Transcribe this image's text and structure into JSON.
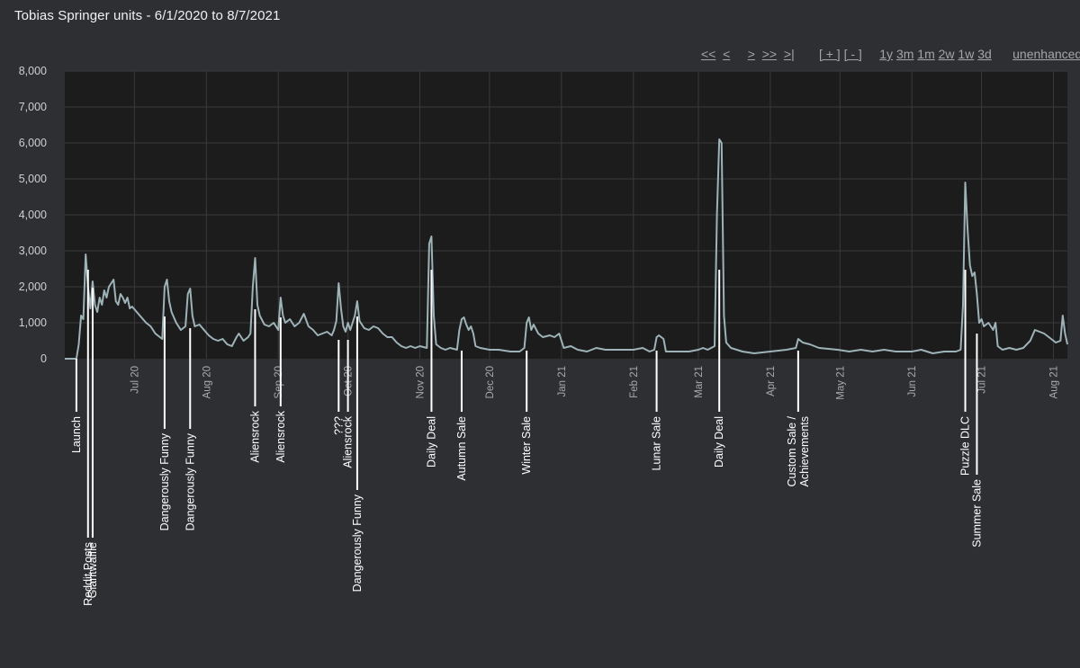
{
  "page": {
    "title": "Tobias Springer units - 6/1/2020 to 8/7/2021"
  },
  "nav": {
    "first": "<<",
    "prev": "<",
    "next": ">",
    "next_big": ">>",
    "last": ">|",
    "zoom_in": "[ + ]",
    "zoom_out": "[ - ]",
    "range_1y": "1y",
    "range_3m": "3m",
    "range_1m": "1m",
    "range_2w": "2w",
    "range_1w": "1w",
    "range_3d": "3d",
    "unenhanced": "unenhanced"
  },
  "colors": {
    "background": "#2e2f33",
    "plot_background": "#1c1c1c",
    "line": "#9db3b8",
    "grid": "#3a3a3c",
    "annotation": "#ffffff"
  },
  "chart_data": {
    "type": "line",
    "title": "Tobias Springer units - 6/1/2020 to 8/7/2021",
    "xlabel": "",
    "ylabel": "",
    "x_range": [
      "2020-06-01",
      "2021-08-07"
    ],
    "ylim": [
      0,
      8000
    ],
    "y_ticks": [
      0,
      1000,
      2000,
      3000,
      4000,
      5000,
      6000,
      7000,
      8000
    ],
    "y_tick_labels": [
      "0",
      "1,000",
      "2,000",
      "3,000",
      "4,000",
      "5,000",
      "6,000",
      "7,000",
      "8,000"
    ],
    "x_ticks": [
      {
        "date": "2020-07-01",
        "label": "Jul 20"
      },
      {
        "date": "2020-08-01",
        "label": "Aug 20"
      },
      {
        "date": "2020-09-01",
        "label": "Sep 20"
      },
      {
        "date": "2020-10-01",
        "label": "Oct 20"
      },
      {
        "date": "2020-11-01",
        "label": "Nov 20"
      },
      {
        "date": "2020-12-01",
        "label": "Dec 20"
      },
      {
        "date": "2021-01-01",
        "label": "Jan 21"
      },
      {
        "date": "2021-02-01",
        "label": "Feb 21"
      },
      {
        "date": "2021-03-01",
        "label": "Mar 21"
      },
      {
        "date": "2021-04-01",
        "label": "Apr 21"
      },
      {
        "date": "2021-05-01",
        "label": "May 21"
      },
      {
        "date": "2021-06-01",
        "label": "Jun 21"
      },
      {
        "date": "2021-07-01",
        "label": "Jul 21"
      },
      {
        "date": "2021-08-01",
        "label": "Aug 21"
      }
    ],
    "grid": true,
    "series": [
      {
        "values": [
          [
            "2020-06-01",
            0
          ],
          [
            "2020-06-06",
            0
          ],
          [
            "2020-06-07",
            400
          ],
          [
            "2020-06-08",
            1200
          ],
          [
            "2020-06-09",
            1100
          ],
          [
            "2020-06-10",
            2900
          ],
          [
            "2020-06-11",
            2000
          ],
          [
            "2020-06-12",
            1400
          ],
          [
            "2020-06-13",
            2150
          ],
          [
            "2020-06-14",
            1500
          ],
          [
            "2020-06-15",
            1300
          ],
          [
            "2020-06-16",
            1700
          ],
          [
            "2020-06-17",
            1500
          ],
          [
            "2020-06-18",
            1900
          ],
          [
            "2020-06-19",
            1700
          ],
          [
            "2020-06-20",
            2000
          ],
          [
            "2020-06-21",
            2100
          ],
          [
            "2020-06-22",
            2200
          ],
          [
            "2020-06-23",
            1600
          ],
          [
            "2020-06-24",
            1500
          ],
          [
            "2020-06-25",
            1800
          ],
          [
            "2020-06-26",
            1700
          ],
          [
            "2020-06-27",
            1550
          ],
          [
            "2020-06-28",
            1700
          ],
          [
            "2020-06-29",
            1400
          ],
          [
            "2020-06-30",
            1450
          ],
          [
            "2020-07-02",
            1300
          ],
          [
            "2020-07-04",
            1150
          ],
          [
            "2020-07-06",
            1000
          ],
          [
            "2020-07-08",
            900
          ],
          [
            "2020-07-10",
            700
          ],
          [
            "2020-07-12",
            600
          ],
          [
            "2020-07-13",
            550
          ],
          [
            "2020-07-14",
            2000
          ],
          [
            "2020-07-15",
            2200
          ],
          [
            "2020-07-16",
            1600
          ],
          [
            "2020-07-17",
            1300
          ],
          [
            "2020-07-19",
            1000
          ],
          [
            "2020-07-21",
            800
          ],
          [
            "2020-07-23",
            900
          ],
          [
            "2020-07-24",
            1800
          ],
          [
            "2020-07-25",
            1950
          ],
          [
            "2020-07-26",
            1200
          ],
          [
            "2020-07-27",
            900
          ],
          [
            "2020-07-29",
            950
          ],
          [
            "2020-07-31",
            800
          ],
          [
            "2020-08-02",
            650
          ],
          [
            "2020-08-04",
            550
          ],
          [
            "2020-08-06",
            500
          ],
          [
            "2020-08-08",
            550
          ],
          [
            "2020-08-10",
            400
          ],
          [
            "2020-08-12",
            350
          ],
          [
            "2020-08-14",
            600
          ],
          [
            "2020-08-15",
            700
          ],
          [
            "2020-08-17",
            500
          ],
          [
            "2020-08-19",
            600
          ],
          [
            "2020-08-20",
            700
          ],
          [
            "2020-08-21",
            2000
          ],
          [
            "2020-08-22",
            2800
          ],
          [
            "2020-08-23",
            1500
          ],
          [
            "2020-08-24",
            1200
          ],
          [
            "2020-08-26",
            950
          ],
          [
            "2020-08-28",
            900
          ],
          [
            "2020-08-30",
            1000
          ],
          [
            "2020-09-01",
            800
          ],
          [
            "2020-09-02",
            1700
          ],
          [
            "2020-09-03",
            1200
          ],
          [
            "2020-09-04",
            1000
          ],
          [
            "2020-09-06",
            1100
          ],
          [
            "2020-09-08",
            900
          ],
          [
            "2020-09-10",
            1000
          ],
          [
            "2020-09-12",
            1250
          ],
          [
            "2020-09-14",
            900
          ],
          [
            "2020-09-16",
            800
          ],
          [
            "2020-09-18",
            650
          ],
          [
            "2020-09-20",
            700
          ],
          [
            "2020-09-22",
            750
          ],
          [
            "2020-09-24",
            650
          ],
          [
            "2020-09-25",
            800
          ],
          [
            "2020-09-26",
            1050
          ],
          [
            "2020-09-27",
            2100
          ],
          [
            "2020-09-28",
            1400
          ],
          [
            "2020-09-29",
            900
          ],
          [
            "2020-09-30",
            750
          ],
          [
            "2020-10-01",
            1000
          ],
          [
            "2020-10-02",
            800
          ],
          [
            "2020-10-04",
            1200
          ],
          [
            "2020-10-05",
            1600
          ],
          [
            "2020-10-06",
            1050
          ],
          [
            "2020-10-08",
            850
          ],
          [
            "2020-10-10",
            800
          ],
          [
            "2020-10-12",
            900
          ],
          [
            "2020-10-14",
            850
          ],
          [
            "2020-10-16",
            700
          ],
          [
            "2020-10-18",
            600
          ],
          [
            "2020-10-20",
            600
          ],
          [
            "2020-10-22",
            450
          ],
          [
            "2020-10-24",
            350
          ],
          [
            "2020-10-26",
            300
          ],
          [
            "2020-10-28",
            350
          ],
          [
            "2020-10-30",
            300
          ],
          [
            "2020-11-01",
            350
          ],
          [
            "2020-11-04",
            300
          ],
          [
            "2020-11-05",
            3200
          ],
          [
            "2020-11-06",
            3400
          ],
          [
            "2020-11-07",
            1200
          ],
          [
            "2020-11-08",
            400
          ],
          [
            "2020-11-10",
            300
          ],
          [
            "2020-11-12",
            250
          ],
          [
            "2020-11-14",
            300
          ],
          [
            "2020-11-17",
            250
          ],
          [
            "2020-11-18",
            800
          ],
          [
            "2020-11-19",
            1100
          ],
          [
            "2020-11-20",
            1150
          ],
          [
            "2020-11-21",
            950
          ],
          [
            "2020-11-22",
            800
          ],
          [
            "2020-11-23",
            900
          ],
          [
            "2020-11-24",
            700
          ],
          [
            "2020-11-25",
            350
          ],
          [
            "2020-11-27",
            300
          ],
          [
            "2020-12-01",
            250
          ],
          [
            "2020-12-05",
            250
          ],
          [
            "2020-12-10",
            200
          ],
          [
            "2020-12-14",
            200
          ],
          [
            "2020-12-16",
            300
          ],
          [
            "2020-12-17",
            1000
          ],
          [
            "2020-12-18",
            1150
          ],
          [
            "2020-12-19",
            800
          ],
          [
            "2020-12-20",
            950
          ],
          [
            "2020-12-22",
            700
          ],
          [
            "2020-12-24",
            600
          ],
          [
            "2020-12-27",
            650
          ],
          [
            "2020-12-29",
            600
          ],
          [
            "2020-12-31",
            700
          ],
          [
            "2021-01-02",
            300
          ],
          [
            "2021-01-05",
            350
          ],
          [
            "2021-01-08",
            250
          ],
          [
            "2021-01-12",
            200
          ],
          [
            "2021-01-16",
            300
          ],
          [
            "2021-01-20",
            250
          ],
          [
            "2021-01-25",
            250
          ],
          [
            "2021-02-01",
            250
          ],
          [
            "2021-02-05",
            300
          ],
          [
            "2021-02-08",
            200
          ],
          [
            "2021-02-10",
            250
          ],
          [
            "2021-02-11",
            600
          ],
          [
            "2021-02-12",
            650
          ],
          [
            "2021-02-14",
            550
          ],
          [
            "2021-02-15",
            200
          ],
          [
            "2021-02-20",
            200
          ],
          [
            "2021-02-25",
            200
          ],
          [
            "2021-03-01",
            250
          ],
          [
            "2021-03-03",
            300
          ],
          [
            "2021-03-05",
            250
          ],
          [
            "2021-03-08",
            350
          ],
          [
            "2021-03-09",
            4000
          ],
          [
            "2021-03-10",
            6100
          ],
          [
            "2021-03-11",
            6000
          ],
          [
            "2021-03-12",
            1200
          ],
          [
            "2021-03-13",
            450
          ],
          [
            "2021-03-15",
            300
          ],
          [
            "2021-03-20",
            200
          ],
          [
            "2021-03-25",
            150
          ],
          [
            "2021-04-01",
            200
          ],
          [
            "2021-04-08",
            250
          ],
          [
            "2021-04-12",
            300
          ],
          [
            "2021-04-13",
            550
          ],
          [
            "2021-04-15",
            450
          ],
          [
            "2021-04-18",
            400
          ],
          [
            "2021-04-22",
            300
          ],
          [
            "2021-04-30",
            250
          ],
          [
            "2021-05-05",
            200
          ],
          [
            "2021-05-10",
            250
          ],
          [
            "2021-05-15",
            200
          ],
          [
            "2021-05-20",
            250
          ],
          [
            "2021-05-25",
            200
          ],
          [
            "2021-06-01",
            200
          ],
          [
            "2021-06-05",
            250
          ],
          [
            "2021-06-10",
            150
          ],
          [
            "2021-06-15",
            200
          ],
          [
            "2021-06-20",
            200
          ],
          [
            "2021-06-22",
            250
          ],
          [
            "2021-06-23",
            1500
          ],
          [
            "2021-06-24",
            4900
          ],
          [
            "2021-06-25",
            3600
          ],
          [
            "2021-06-26",
            2600
          ],
          [
            "2021-06-27",
            2300
          ],
          [
            "2021-06-28",
            2400
          ],
          [
            "2021-06-29",
            1800
          ],
          [
            "2021-06-30",
            1000
          ],
          [
            "2021-07-01",
            1100
          ],
          [
            "2021-07-02",
            900
          ],
          [
            "2021-07-04",
            1000
          ],
          [
            "2021-07-06",
            800
          ],
          [
            "2021-07-07",
            1000
          ],
          [
            "2021-07-08",
            350
          ],
          [
            "2021-07-10",
            250
          ],
          [
            "2021-07-13",
            300
          ],
          [
            "2021-07-16",
            250
          ],
          [
            "2021-07-19",
            300
          ],
          [
            "2021-07-22",
            500
          ],
          [
            "2021-07-24",
            800
          ],
          [
            "2021-07-26",
            750
          ],
          [
            "2021-07-28",
            700
          ],
          [
            "2021-07-30",
            600
          ],
          [
            "2021-08-02",
            450
          ],
          [
            "2021-08-04",
            500
          ],
          [
            "2021-08-05",
            1200
          ],
          [
            "2021-08-06",
            700
          ],
          [
            "2021-08-07",
            400
          ]
        ]
      }
    ],
    "annotations": [
      {
        "date": "2020-06-06",
        "label": "Launch"
      },
      {
        "date": "2020-06-11",
        "label": "Reddit Posts"
      },
      {
        "date": "2020-06-13",
        "label": "Giantwaffle"
      },
      {
        "date": "2020-07-14",
        "label": "Dangerously Funny"
      },
      {
        "date": "2020-07-25",
        "label": "Dangerously Funny"
      },
      {
        "date": "2020-08-22",
        "label": "Aliensrock"
      },
      {
        "date": "2020-09-02",
        "label": "Aliensrock"
      },
      {
        "date": "2020-09-27",
        "label": "???"
      },
      {
        "date": "2020-10-01",
        "label": "Aliensrock"
      },
      {
        "date": "2020-10-05",
        "label": "Dangerously Funny"
      },
      {
        "date": "2020-11-06",
        "label": "Daily Deal"
      },
      {
        "date": "2020-11-19",
        "label": "Autumn Sale"
      },
      {
        "date": "2020-12-17",
        "label": "Winter Sale"
      },
      {
        "date": "2021-02-11",
        "label": "Lunar Sale"
      },
      {
        "date": "2021-03-10",
        "label": "Daily Deal"
      },
      {
        "date": "2021-04-13",
        "label": "Custom Sale /\nAchievements"
      },
      {
        "date": "2021-06-24",
        "label": "Puzzle DLC"
      },
      {
        "date": "2021-06-29",
        "label": "Summer Sale"
      }
    ]
  }
}
